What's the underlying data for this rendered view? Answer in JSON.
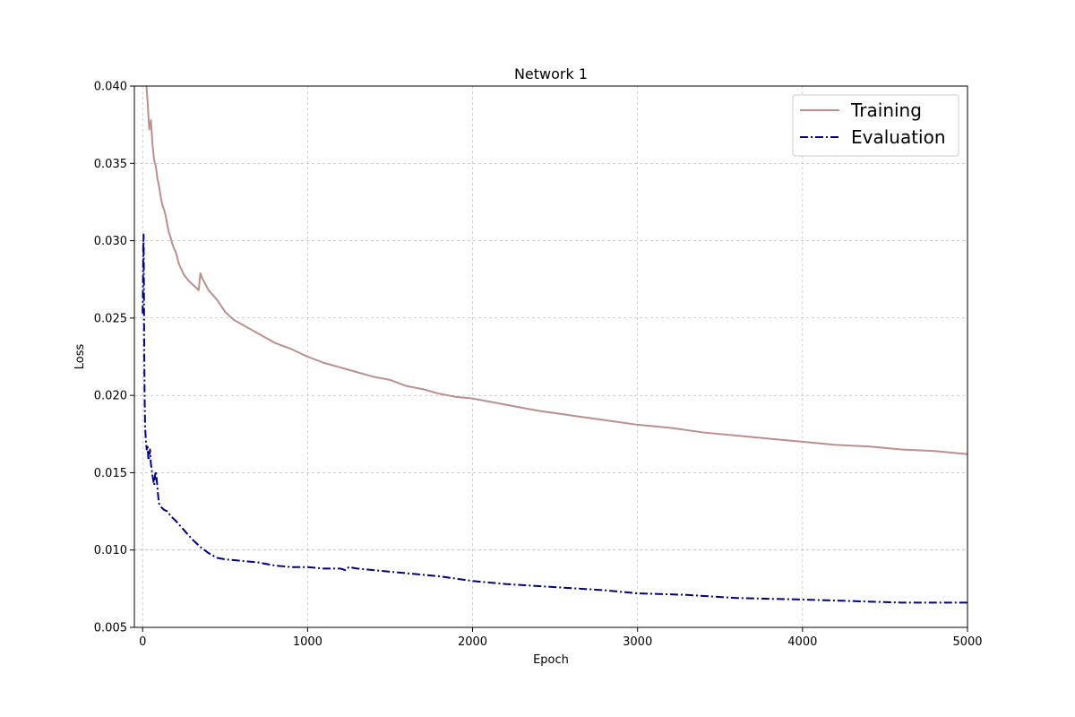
{
  "chart_data": {
    "type": "line",
    "title": "Network 1",
    "xlabel": "Epoch",
    "ylabel": "Loss",
    "xlim": [
      -50,
      5000
    ],
    "ylim": [
      0.005,
      0.04
    ],
    "xticks": [
      0,
      1000,
      2000,
      3000,
      4000,
      5000
    ],
    "xtick_labels": [
      "0",
      "1000",
      "2000",
      "3000",
      "4000",
      "5000"
    ],
    "yticks": [
      0.005,
      0.01,
      0.015,
      0.02,
      0.025,
      0.03,
      0.035,
      0.04
    ],
    "ytick_labels": [
      "0.005",
      "0.010",
      "0.015",
      "0.020",
      "0.025",
      "0.030",
      "0.035",
      "0.040"
    ],
    "grid": true,
    "legend_position": "top-right",
    "series": [
      {
        "name": "Training",
        "color": "#bc8f8f",
        "style": "solid",
        "x": [
          20,
          30,
          40,
          50,
          60,
          70,
          80,
          90,
          100,
          110,
          120,
          130,
          140,
          150,
          160,
          170,
          180,
          190,
          200,
          220,
          250,
          280,
          300,
          320,
          340,
          350,
          360,
          380,
          400,
          450,
          500,
          550,
          600,
          650,
          700,
          750,
          800,
          850,
          900,
          1000,
          1100,
          1200,
          1300,
          1400,
          1500,
          1600,
          1700,
          1800,
          1900,
          2000,
          2200,
          2400,
          2600,
          2800,
          3000,
          3200,
          3400,
          3600,
          3800,
          4000,
          4200,
          4400,
          4600,
          4800,
          5000
        ],
        "values": [
          0.0405,
          0.039,
          0.0372,
          0.0378,
          0.0362,
          0.0352,
          0.0348,
          0.034,
          0.0335,
          0.0328,
          0.0323,
          0.032,
          0.0316,
          0.031,
          0.0305,
          0.0302,
          0.0298,
          0.0295,
          0.0293,
          0.0285,
          0.0278,
          0.0274,
          0.0272,
          0.027,
          0.0268,
          0.0279,
          0.0276,
          0.0272,
          0.0268,
          0.0262,
          0.0254,
          0.0249,
          0.0246,
          0.0243,
          0.024,
          0.0237,
          0.0234,
          0.0232,
          0.023,
          0.0225,
          0.0221,
          0.0218,
          0.0215,
          0.0212,
          0.021,
          0.0206,
          0.0204,
          0.0201,
          0.0199,
          0.0198,
          0.0194,
          0.019,
          0.0187,
          0.0184,
          0.0181,
          0.0179,
          0.0176,
          0.0174,
          0.0172,
          0.017,
          0.0168,
          0.0167,
          0.0165,
          0.0164,
          0.0162
        ]
      },
      {
        "name": "Evaluation",
        "color": "#000080",
        "style": "dashdot",
        "x": [
          0,
          2,
          4,
          6,
          8,
          10,
          12,
          15,
          20,
          25,
          30,
          35,
          40,
          45,
          50,
          55,
          60,
          65,
          70,
          75,
          80,
          85,
          90,
          95,
          100,
          110,
          120,
          130,
          150,
          170,
          200,
          250,
          300,
          350,
          400,
          450,
          500,
          600,
          700,
          800,
          900,
          1000,
          1100,
          1200,
          1230,
          1250,
          1300,
          1400,
          1500,
          1600,
          1800,
          2000,
          2200,
          2500,
          2800,
          3000,
          3300,
          3600,
          4000,
          4300,
          4600,
          5000
        ],
        "values": [
          0.0253,
          0.027,
          0.0298,
          0.0304,
          0.0268,
          0.0225,
          0.02,
          0.018,
          0.017,
          0.0165,
          0.0168,
          0.0158,
          0.016,
          0.0165,
          0.0156,
          0.0152,
          0.0148,
          0.0145,
          0.0142,
          0.0148,
          0.0151,
          0.0146,
          0.014,
          0.0134,
          0.013,
          0.0128,
          0.0127,
          0.0126,
          0.0125,
          0.0122,
          0.0119,
          0.0113,
          0.0107,
          0.0102,
          0.0098,
          0.0095,
          0.0094,
          0.0093,
          0.0092,
          0.009,
          0.0089,
          0.0089,
          0.0088,
          0.0088,
          0.0087,
          0.0089,
          0.0088,
          0.0087,
          0.0086,
          0.0085,
          0.0083,
          0.008,
          0.0078,
          0.0076,
          0.0074,
          0.0072,
          0.0071,
          0.0069,
          0.0068,
          0.0067,
          0.0066,
          0.0066
        ]
      }
    ]
  }
}
